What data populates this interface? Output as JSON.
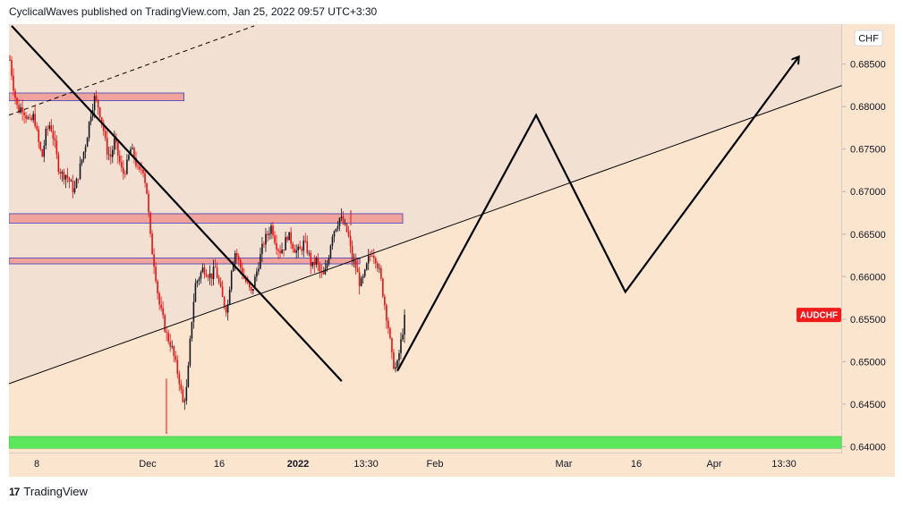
{
  "header": {
    "attribution": "CyclicalWaves published on TradingView.com, Jan 25, 2022 09:57 UTC+3:30"
  },
  "footer": {
    "brand": "TradingView",
    "logo_glyph": "17"
  },
  "colors": {
    "background_upper": "#f2e0d2",
    "background_lower": "#fbe5cf",
    "zone_red": "#f0a39b",
    "zone_green": "#5ce65c",
    "candle_up": "#131722",
    "candle_down": "#e81010",
    "price_label_bg": "#f01c1c"
  },
  "chart_data": {
    "type": "candlestick",
    "symbol": "AUDCHF",
    "currency": "CHF",
    "y_ticks": [
      "0.68500",
      "0.68000",
      "0.67500",
      "0.67000",
      "0.66500",
      "0.66000",
      "0.65500",
      "0.65000",
      "0.64500",
      "0.64000"
    ],
    "ylim": [
      0.6392,
      0.6897
    ],
    "x_ticks": [
      "8",
      "Dec",
      "16",
      "2022",
      "13:30",
      "Feb",
      "Mar",
      "16",
      "Apr",
      "13:30"
    ],
    "last_price_label": "AUDCHF",
    "last_price": 0.6555,
    "price_path": [
      0.6855,
      0.682,
      0.6795,
      0.68,
      0.679,
      0.678,
      0.679,
      0.676,
      0.674,
      0.677,
      0.678,
      0.676,
      0.673,
      0.672,
      0.672,
      0.671,
      0.67,
      0.672,
      0.674,
      0.676,
      0.679,
      0.681,
      0.68,
      0.678,
      0.675,
      0.674,
      0.676,
      0.674,
      0.672,
      0.673,
      0.675,
      0.674,
      0.672,
      0.673,
      0.67,
      0.664,
      0.661,
      0.657,
      0.655,
      0.653,
      0.652,
      0.65,
      0.648,
      0.645,
      0.647,
      0.654,
      0.659,
      0.66,
      0.661,
      0.6605,
      0.66,
      0.661,
      0.659,
      0.657,
      0.656,
      0.661,
      0.663,
      0.6615,
      0.66,
      0.659,
      0.658,
      0.66,
      0.662,
      0.664,
      0.665,
      0.666,
      0.664,
      0.663,
      0.6635,
      0.665,
      0.664,
      0.663,
      0.663,
      0.664,
      0.663,
      0.661,
      0.662,
      0.6605,
      0.66,
      0.662,
      0.665,
      0.666,
      0.667,
      0.666,
      0.665,
      0.662,
      0.661,
      0.659,
      0.66,
      0.662,
      0.663,
      0.662,
      0.66,
      0.657,
      0.654,
      0.65,
      0.649,
      0.652,
      0.655
    ],
    "zones": [
      {
        "kind": "resistance",
        "top": 0.6816,
        "bottom": 0.6807,
        "x0": 0.0,
        "x1": 0.2101
      },
      {
        "kind": "resistance",
        "top": 0.6674,
        "bottom": 0.6663,
        "x0": 0.0,
        "x1": 0.4726
      },
      {
        "kind": "resistance",
        "top": 0.6622,
        "bottom": 0.6615,
        "x0": 0.0,
        "x1": 0.4212
      },
      {
        "kind": "support",
        "top": 0.6412,
        "bottom": 0.6398,
        "x0": 0.0,
        "x1": 1.0
      }
    ],
    "projection": [
      {
        "x": 0.4662,
        "y": 0.6489
      },
      {
        "x": 0.6327,
        "y": 0.679
      },
      {
        "x": 0.7398,
        "y": 0.6582
      },
      {
        "x": 0.9475,
        "y": 0.6858
      }
    ],
    "trendlines": [
      {
        "style": "solid-thick",
        "x0": 0.0032,
        "y0": 0.6895,
        "x1": 0.3994,
        "y1": 0.6477
      },
      {
        "style": "solid-thin",
        "x0": 0.0,
        "y0": 0.6474,
        "x1": 1.0,
        "y1": 0.6825
      },
      {
        "style": "dashed",
        "x0": 0.0,
        "y0": 0.679,
        "x1": 0.2944,
        "y1": 0.6895
      }
    ]
  }
}
